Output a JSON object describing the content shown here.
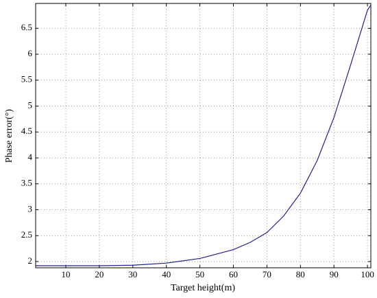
{
  "chart_data": {
    "type": "line",
    "x_label": "Target height(m)",
    "y_label": "Phase error(°)",
    "x": [
      1,
      10,
      20,
      30,
      40,
      50,
      60,
      65,
      70,
      75,
      80,
      85,
      90,
      95,
      100,
      101
    ],
    "series": [
      {
        "name": "Phase error",
        "color": "#1f1f8f",
        "values": [
          1.92,
          1.92,
          1.92,
          1.93,
          1.97,
          2.06,
          2.23,
          2.37,
          2.56,
          2.88,
          3.32,
          3.95,
          4.78,
          5.8,
          6.85,
          6.95
        ]
      }
    ],
    "xlim": [
      1,
      101
    ],
    "ylim": [
      1.88,
      6.98
    ],
    "xticks": [
      10,
      20,
      30,
      40,
      50,
      60,
      70,
      80,
      90,
      100
    ],
    "yticks": [
      2,
      2.5,
      3,
      3.5,
      4,
      4.5,
      5,
      5.5,
      6,
      6.5
    ],
    "grid": true
  }
}
